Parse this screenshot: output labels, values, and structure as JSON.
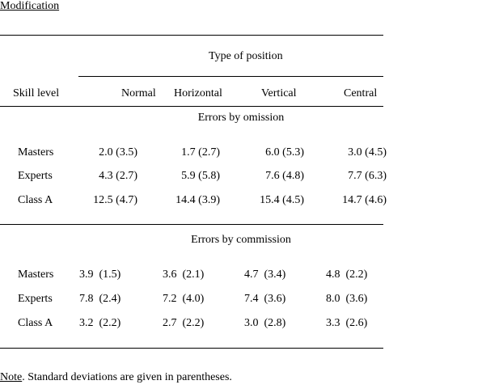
{
  "title": "Modification",
  "table": {
    "group_header": "Type of position",
    "row_header": "Skill level",
    "columns": [
      "Normal",
      "Horizontal",
      "Vertical",
      "Central"
    ],
    "sections": [
      {
        "title": "Errors by omission",
        "rows": [
          {
            "label": "Masters",
            "cells": [
              "2.0 (3.5)",
              "1.7 (2.7)",
              "6.0 (5.3)",
              "3.0 (4.5)"
            ]
          },
          {
            "label": "Experts",
            "cells": [
              "4.3 (2.7)",
              "5.9 (5.8)",
              "7.6 (4.8)",
              "7.7 (6.3)"
            ]
          },
          {
            "label": "Class A",
            "cells": [
              "12.5 (4.7)",
              "14.4 (3.9)",
              "15.4 (4.5)",
              "14.7 (4.6)"
            ]
          }
        ]
      },
      {
        "title": "Errors by commission",
        "rows": [
          {
            "label": "Masters",
            "cells": [
              "3.9  (1.5)",
              "3.6  (2.1)",
              "4.7  (3.4)",
              "4.8  (2.2)"
            ]
          },
          {
            "label": "Experts",
            "cells": [
              "7.8  (2.4)",
              "7.2  (4.0)",
              "7.4  (3.6)",
              "8.0  (3.6)"
            ]
          },
          {
            "label": "Class A",
            "cells": [
              "3.2  (2.2)",
              "2.7  (2.2)",
              "3.0  (2.8)",
              "3.3  (2.6)"
            ]
          }
        ]
      }
    ]
  },
  "note": {
    "label": "Note",
    "text": ". Standard deviations are given in parentheses."
  }
}
